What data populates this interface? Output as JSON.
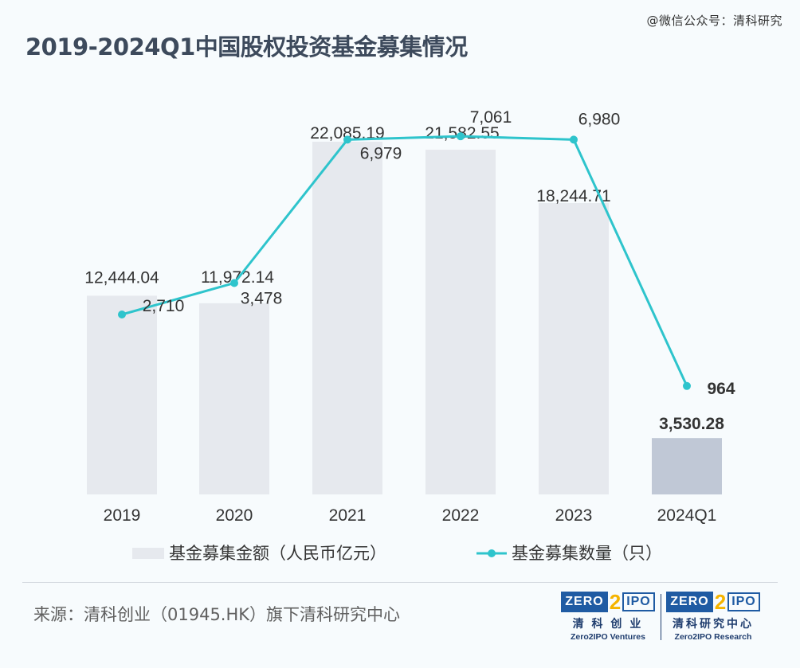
{
  "watermark": "@微信公众号：清科研究",
  "title": "2019-2024Q1中国股权投资基金募集情况",
  "chart_data": {
    "type": "bar",
    "categories": [
      "2019",
      "2020",
      "2021",
      "2022",
      "2023",
      "2024Q1"
    ],
    "series": [
      {
        "name": "基金募集金额（人民币亿元）",
        "type": "bar",
        "values": [
          12444.04,
          11972.14,
          22085.19,
          21582.55,
          18244.71,
          3530.28
        ],
        "labels": [
          "12,444.04",
          "11,972.14",
          "22,085.19",
          "21,582.55",
          "18,244.71",
          "3,530.28"
        ],
        "color": "#e6e9ee",
        "highlight_color": "#c0c8d6"
      },
      {
        "name": "基金募集数量（只）",
        "type": "line",
        "values": [
          2710,
          3478,
          6979,
          7061,
          6980,
          964
        ],
        "labels": [
          "2,710",
          "3,478",
          "6,979",
          "7,061",
          "6,980",
          "964"
        ],
        "color": "#2ec4cc"
      }
    ],
    "grid": false,
    "legend_position": "bottom"
  },
  "source": "来源：清科创业（01945.HK）旗下清科研究中心",
  "logos": [
    {
      "badge_left": "ZERO",
      "badge_mid": "2",
      "badge_right": "IPO",
      "cn": "清 科 创 业",
      "en": "Zero2IPO Ventures"
    },
    {
      "badge_left": "ZERO",
      "badge_mid": "2",
      "badge_right": "IPO",
      "cn": "清科研究中心",
      "en": "Zero2IPO Research"
    }
  ]
}
